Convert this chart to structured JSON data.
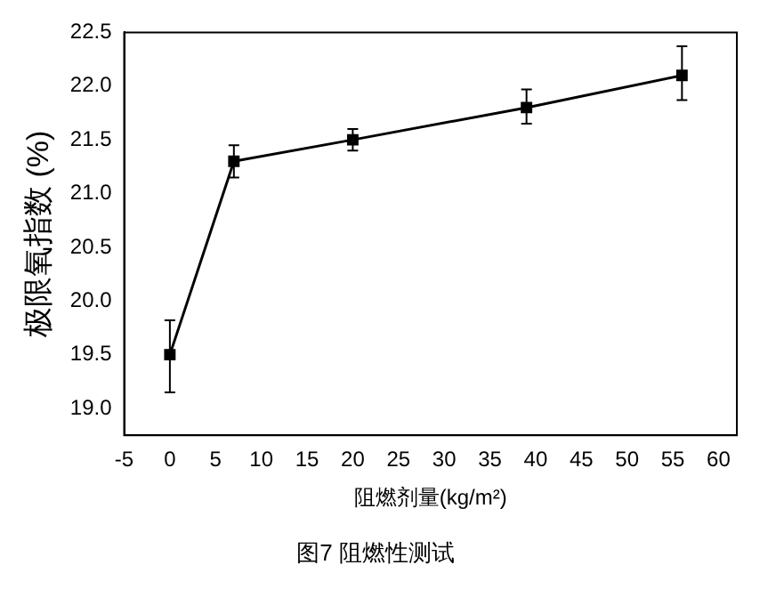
{
  "chart_data": {
    "type": "line",
    "title": "图7 阻燃性测试",
    "xlabel": "阻燃剂量(kg/m²)",
    "ylabel": "极限氧指数 (%)",
    "x": [
      0,
      7,
      20,
      39,
      56
    ],
    "series": [
      {
        "color": "#000000",
        "values": [
          19.5,
          21.3,
          21.5,
          21.8,
          22.1
        ],
        "errors": [
          [
            19.15,
            19.82
          ],
          [
            21.15,
            21.45
          ],
          [
            21.4,
            21.6
          ],
          [
            21.65,
            21.97
          ],
          [
            21.87,
            22.37
          ]
        ]
      }
    ],
    "xlim": [
      -5,
      62
    ],
    "xticks": [
      -5,
      0,
      5,
      10,
      15,
      20,
      25,
      30,
      35,
      40,
      45,
      50,
      55,
      60
    ],
    "ylim": [
      18.75,
      22.5
    ],
    "yticks": [
      {
        "value": 19,
        "label": "19.0"
      },
      19.5,
      {
        "value": 20,
        "label": "20.0"
      },
      20.5,
      {
        "value": 21,
        "label": "21.0"
      },
      21.5,
      {
        "value": 22,
        "label": "22.0"
      },
      22.5
    ],
    "grid": false,
    "legend": false,
    "marker": "square",
    "line_style": "solid"
  }
}
